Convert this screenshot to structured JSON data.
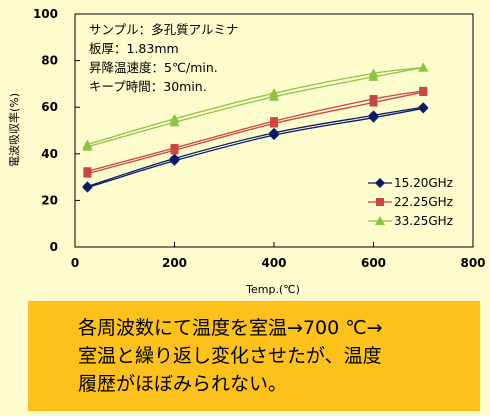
{
  "chart_data": {
    "type": "line",
    "xlabel": "Temp.(℃)",
    "ylabel": "電波吸収率(%)",
    "xlim": [
      0,
      800
    ],
    "ylim": [
      0,
      100
    ],
    "xticks": [
      "0",
      "200",
      "400",
      "600",
      "800"
    ],
    "yticks": [
      "0",
      "20",
      "40",
      "60",
      "80",
      "100"
    ],
    "legend_position": "bottom-right",
    "grid": false,
    "series": [
      {
        "name": "15.20GHz",
        "color": "#0a1a6b",
        "marker": "diamond",
        "x": [
          25,
          200,
          400,
          600,
          700
        ],
        "y_up": [
          25.5,
          37,
          48,
          55.5,
          59.5
        ],
        "y_down": [
          26,
          38,
          49,
          56.5,
          60
        ]
      },
      {
        "name": "22.25GHz",
        "color": "#cc4444",
        "marker": "square",
        "x": [
          25,
          200,
          400,
          600,
          700
        ],
        "y_up": [
          31.5,
          41.5,
          53,
          62,
          66.5
        ],
        "y_down": [
          32.5,
          42.5,
          54,
          63.5,
          67
        ]
      },
      {
        "name": "33.25GHz",
        "color": "#8dc442",
        "marker": "triangle",
        "x": [
          25,
          200,
          400,
          600,
          700
        ],
        "y_up": [
          43,
          53.5,
          64.5,
          73,
          77
        ],
        "y_down": [
          44,
          55,
          66,
          74.5,
          77
        ]
      }
    ]
  },
  "info": [
    "サンプル：多孔質アルミナ",
    "板厚：1.83mm",
    "昇降温速度：5℃/min.",
    "キープ時間：30min."
  ],
  "note": "各周波数にて温度を室温→700 ℃→\n室温と繰り返し変化させたが、温度\n履歴がほぼみられない。"
}
